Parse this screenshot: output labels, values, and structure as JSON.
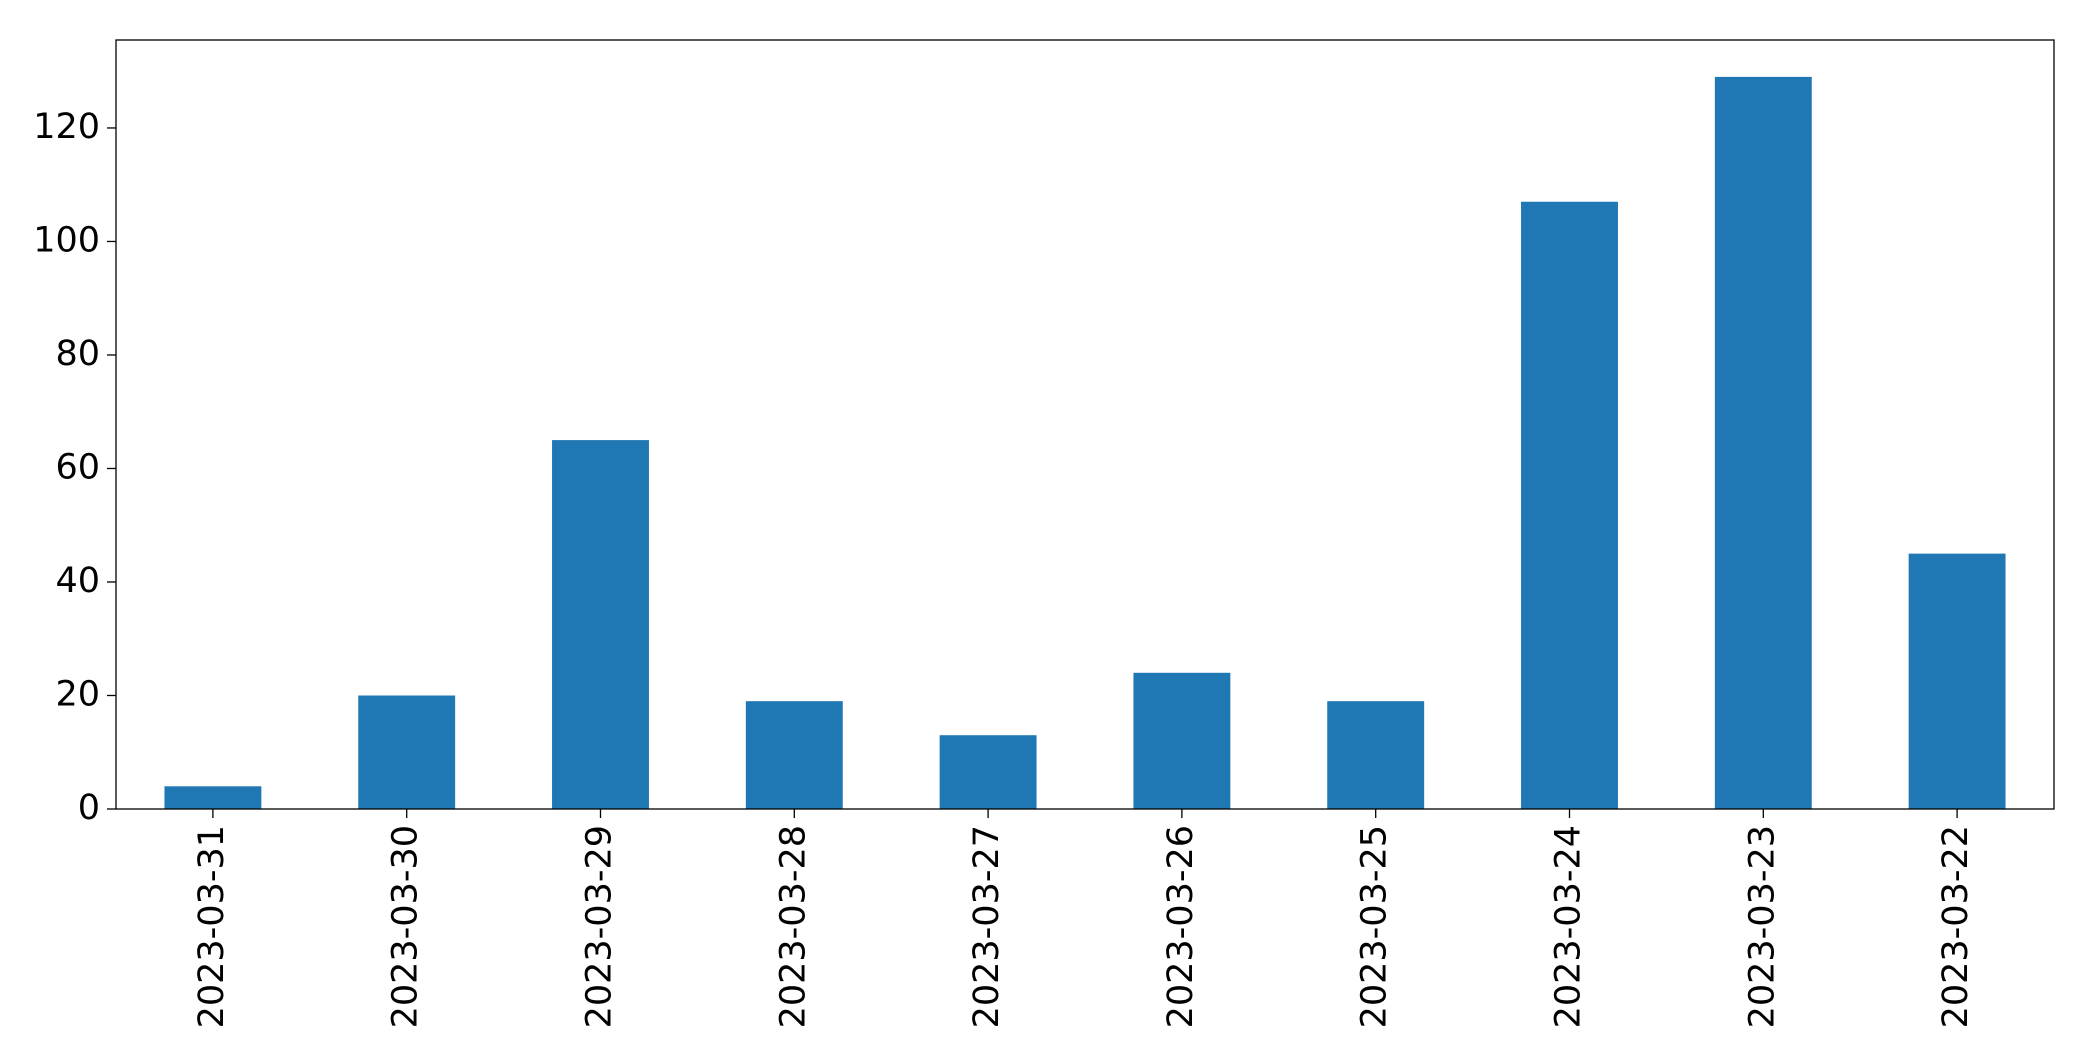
{
  "chart_data": {
    "type": "bar",
    "categories": [
      "2023-03-31",
      "2023-03-30",
      "2023-03-29",
      "2023-03-28",
      "2023-03-27",
      "2023-03-26",
      "2023-03-25",
      "2023-03-24",
      "2023-03-23",
      "2023-03-22"
    ],
    "values": [
      4,
      20,
      65,
      19,
      13,
      24,
      19,
      107,
      129,
      45
    ],
    "color": "#1f77b4",
    "ylim": [
      0,
      135.5
    ],
    "yticks": [
      0,
      20,
      40,
      60,
      80,
      100,
      120
    ],
    "grid": false
  }
}
